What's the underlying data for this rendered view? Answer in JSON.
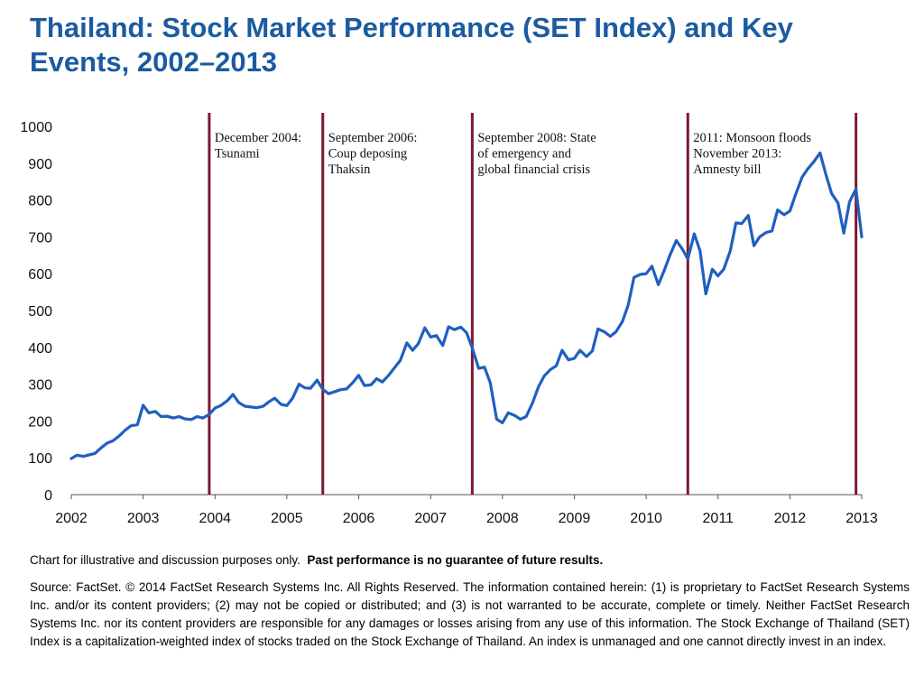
{
  "title": "Thailand: Stock Market Performance (SET Index) and Key Events, 2002–2013",
  "note_plain": "Chart for illustrative  and discussion purposes only.",
  "note_bold": "Past performance is no guarantee of future results.",
  "source": "Source: FactSet. © 2014 FactSet Research Systems Inc. All Rights Reserved. The information contained herein: (1) is proprietary to FactSet Research Systems Inc. and/or its content providers; (2) may not be copied or distributed; and (3) is not warranted to be accurate, complete or timely. Neither FactSet Research Systems Inc. nor its content providers are responsible for any damages or losses arising from any use of this information. The Stock Exchange of Thailand (SET) Index is a capitalization-weighted index of stocks traded on the Stock Exchange of Thailand. An index is unmanaged and one cannot directly invest in an index.",
  "colors": {
    "title": "#1b5ba0",
    "line": "#1f5fbf",
    "event_line": "#7b1a2e",
    "axis": "#555555"
  },
  "chart_data": {
    "type": "line",
    "title": "",
    "xlabel": "",
    "ylabel": "",
    "xlim": [
      2002,
      2013
    ],
    "ylim": [
      0,
      1000
    ],
    "y_ticks": [
      0,
      100,
      200,
      300,
      400,
      500,
      600,
      700,
      800,
      900,
      1000
    ],
    "x_ticks": [
      2002,
      2003,
      2004,
      2005,
      2006,
      2007,
      2008,
      2009,
      2010,
      2011,
      2012,
      2013
    ],
    "grid": false,
    "series": [
      {
        "name": "",
        "x": [
          2002.0,
          2002.08,
          2002.17,
          2002.25,
          2002.33,
          2002.42,
          2002.5,
          2002.58,
          2002.67,
          2002.75,
          2002.83,
          2002.92,
          2003.0,
          2003.08,
          2003.17,
          2003.25,
          2003.33,
          2003.42,
          2003.5,
          2003.58,
          2003.67,
          2003.75,
          2003.83,
          2003.92,
          2004.0,
          2004.08,
          2004.17,
          2004.25,
          2004.33,
          2004.42,
          2004.5,
          2004.58,
          2004.67,
          2004.75,
          2004.83,
          2004.92,
          2005.0,
          2005.08,
          2005.17,
          2005.25,
          2005.33,
          2005.42,
          2005.5,
          2005.58,
          2005.67,
          2005.75,
          2005.83,
          2005.92,
          2006.0,
          2006.08,
          2006.17,
          2006.25,
          2006.33,
          2006.42,
          2006.5,
          2006.58,
          2006.67,
          2006.75,
          2006.83,
          2006.92,
          2007.0,
          2007.08,
          2007.17,
          2007.25,
          2007.33,
          2007.42,
          2007.5,
          2007.58,
          2007.67,
          2007.75,
          2007.83,
          2007.92,
          2008.0,
          2008.08,
          2008.17,
          2008.25,
          2008.33,
          2008.42,
          2008.5,
          2008.58,
          2008.67,
          2008.75,
          2008.83,
          2008.92,
          2009.0,
          2009.08,
          2009.17,
          2009.25,
          2009.33,
          2009.42,
          2009.5,
          2009.58,
          2009.67,
          2009.75,
          2009.83,
          2009.92,
          2010.0,
          2010.08,
          2010.17,
          2010.25,
          2010.33,
          2010.42,
          2010.5,
          2010.58,
          2010.67,
          2010.75,
          2010.83,
          2010.92,
          2011.0,
          2011.08,
          2011.17,
          2011.25,
          2011.33,
          2011.42,
          2011.5,
          2011.58,
          2011.67,
          2011.75,
          2011.83,
          2011.92,
          2012.0,
          2012.08,
          2012.17,
          2012.25,
          2012.33,
          2012.42,
          2012.5,
          2012.58,
          2012.67,
          2012.75,
          2012.83,
          2012.92,
          2013.0
        ],
        "values": [
          98,
          107,
          104,
          108,
          112,
          128,
          140,
          146,
          160,
          175,
          187,
          190,
          243,
          222,
          226,
          212,
          213,
          208,
          212,
          206,
          204,
          212,
          208,
          218,
          235,
          242,
          255,
          272,
          250,
          240,
          238,
          236,
          240,
          252,
          262,
          245,
          242,
          262,
          300,
          290,
          289,
          311,
          286,
          274,
          280,
          285,
          287,
          305,
          324,
          296,
          298,
          315,
          306,
          325,
          345,
          365,
          412,
          392,
          410,
          453,
          428,
          432,
          405,
          456,
          448,
          455,
          440,
          398,
          343,
          346,
          304,
          205,
          195,
          222,
          215,
          205,
          212,
          250,
          292,
          322,
          340,
          350,
          392,
          366,
          370,
          392,
          375,
          390,
          450,
          442,
          430,
          442,
          470,
          515,
          590,
          598,
          600,
          620,
          570,
          608,
          650,
          690,
          668,
          640,
          708,
          662,
          545,
          612,
          594,
          612,
          662,
          738,
          736,
          758,
          676,
          700,
          712,
          716,
          773,
          760,
          770,
          815,
          862,
          885,
          903,
          928,
          870,
          818,
          792,
          710,
          795,
          830,
          700
        ]
      }
    ],
    "events": [
      {
        "x": 2003.92,
        "label_lines": [
          "December 2004:",
          "Tsunami"
        ]
      },
      {
        "x": 2005.5,
        "label_lines": [
          "September 2006:",
          "Coup deposing",
          "Thaksin"
        ]
      },
      {
        "x": 2007.58,
        "label_lines": [
          "September 2008:  State",
          "of emergency and",
          "global financial crisis"
        ]
      },
      {
        "x": 2010.58,
        "label_lines": [
          "2011:  Monsoon floods",
          "November 2013:",
          "Amnesty bill"
        ]
      },
      {
        "x": 2012.92,
        "label_lines": []
      }
    ]
  }
}
